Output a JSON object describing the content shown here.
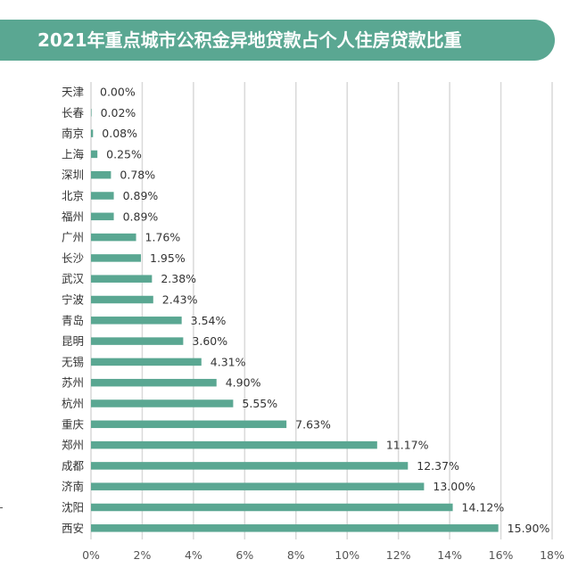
{
  "title": "2021年重点城市公积金异地贷款占个人住房贷款比重",
  "colors": {
    "bar": "#5aa792",
    "title_bg": "#5aa792",
    "grid": "#d9d9d9"
  },
  "chart_data": {
    "type": "bar",
    "orientation": "horizontal",
    "title": "2021年重点城市公积金异地贷款占个人住房贷款比重",
    "categories": [
      "天津",
      "长春",
      "南京",
      "上海",
      "深圳",
      "北京",
      "福州",
      "广州",
      "长沙",
      "武汉",
      "宁波",
      "青岛",
      "昆明",
      "无锡",
      "苏州",
      "杭州",
      "重庆",
      "郑州",
      "成都",
      "济南",
      "沈阳",
      "西安"
    ],
    "values": [
      0.0,
      0.02,
      0.08,
      0.25,
      0.78,
      0.89,
      0.89,
      1.76,
      1.95,
      2.38,
      2.43,
      3.54,
      3.6,
      4.31,
      4.9,
      5.55,
      7.63,
      11.17,
      12.37,
      13.0,
      14.12,
      15.9
    ],
    "value_labels": [
      "0.00%",
      "0.02%",
      "0.08%",
      "0.25%",
      "0.78%",
      "0.89%",
      "0.89%",
      "1.76%",
      "1.95%",
      "2.38%",
      "2.43%",
      "3.54%",
      "3.60%",
      "4.31%",
      "4.90%",
      "5.55%",
      "7.63%",
      "11.17%",
      "12.37%",
      "13.00%",
      "14.12%",
      "15.90%"
    ],
    "xlim": [
      0,
      18
    ],
    "xticks": [
      0,
      2,
      4,
      6,
      8,
      10,
      12,
      14,
      16,
      18
    ],
    "xtick_labels": [
      "0%",
      "2%",
      "4%",
      "6%",
      "8%",
      "10%",
      "12%",
      "14%",
      "16%",
      "18%"
    ],
    "grid": true,
    "legend": "none"
  }
}
